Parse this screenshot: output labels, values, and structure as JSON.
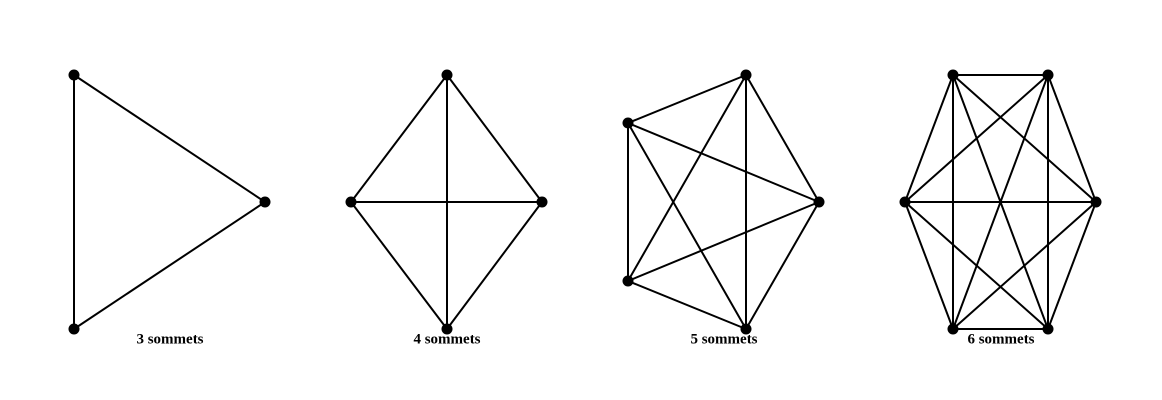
{
  "figure": {
    "colors": {
      "edge": "#000000",
      "vertex": "#000000",
      "background": "#ffffff"
    },
    "graphs": [
      {
        "id": "k3",
        "vertex_count": 3,
        "label": "3 sommets",
        "complete": true
      },
      {
        "id": "k4",
        "vertex_count": 4,
        "label": "4 sommets",
        "complete": true
      },
      {
        "id": "k5",
        "vertex_count": 5,
        "label": "5 sommets",
        "complete": true
      },
      {
        "id": "k6",
        "vertex_count": 6,
        "label": "6 sommets",
        "complete": true
      }
    ]
  }
}
